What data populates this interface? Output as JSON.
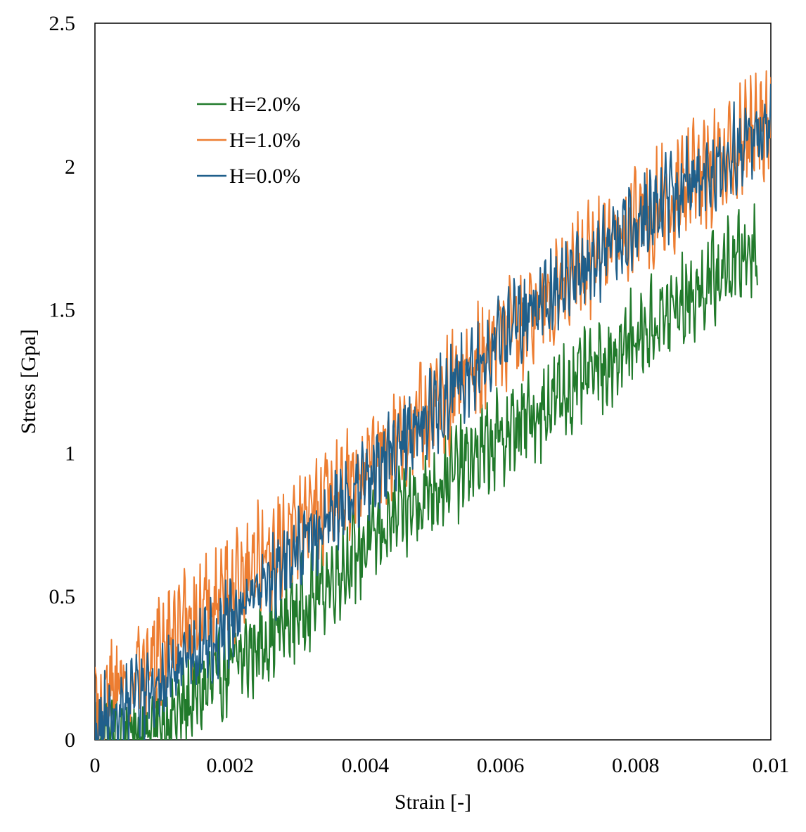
{
  "chart_data": {
    "type": "line",
    "title": "",
    "xlabel": "Strain [-]",
    "ylabel": "Stress [Gpa]",
    "xlim": [
      0,
      0.01
    ],
    "ylim": [
      0,
      2.5
    ],
    "x_ticks": [
      "0",
      "0.002",
      "0.004",
      "0.006",
      "0.008",
      "0.01"
    ],
    "y_ticks": [
      "0",
      "0.5",
      "1",
      "1.5",
      "2",
      "2.5"
    ],
    "grid": false,
    "legend_position": "top-left",
    "series": [
      {
        "name": "H=2.0%",
        "color": "#217a2b",
        "x": [
          0,
          0.001,
          0.002,
          0.003,
          0.004,
          0.005,
          0.006,
          0.007,
          0.008,
          0.009,
          0.0098
        ],
        "y": [
          0.0,
          0.05,
          0.25,
          0.45,
          0.68,
          0.88,
          1.05,
          1.22,
          1.4,
          1.58,
          1.73
        ],
        "noise": 0.12
      },
      {
        "name": "H=1.0%",
        "color": "#ed7d31",
        "x": [
          0,
          0.001,
          0.002,
          0.003,
          0.004,
          0.005,
          0.006,
          0.007,
          0.008,
          0.009,
          0.01
        ],
        "y": [
          0.12,
          0.32,
          0.52,
          0.75,
          0.95,
          1.15,
          1.4,
          1.6,
          1.8,
          1.98,
          2.15
        ],
        "noise": 0.14
      },
      {
        "name": "H=0.0%",
        "color": "#1f5f8b",
        "x": [
          0,
          0.001,
          0.002,
          0.003,
          0.004,
          0.005,
          0.006,
          0.007,
          0.008,
          0.009,
          0.01
        ],
        "y": [
          0.05,
          0.2,
          0.42,
          0.66,
          0.9,
          1.15,
          1.4,
          1.6,
          1.8,
          1.98,
          2.15
        ],
        "noise": 0.11
      }
    ]
  }
}
